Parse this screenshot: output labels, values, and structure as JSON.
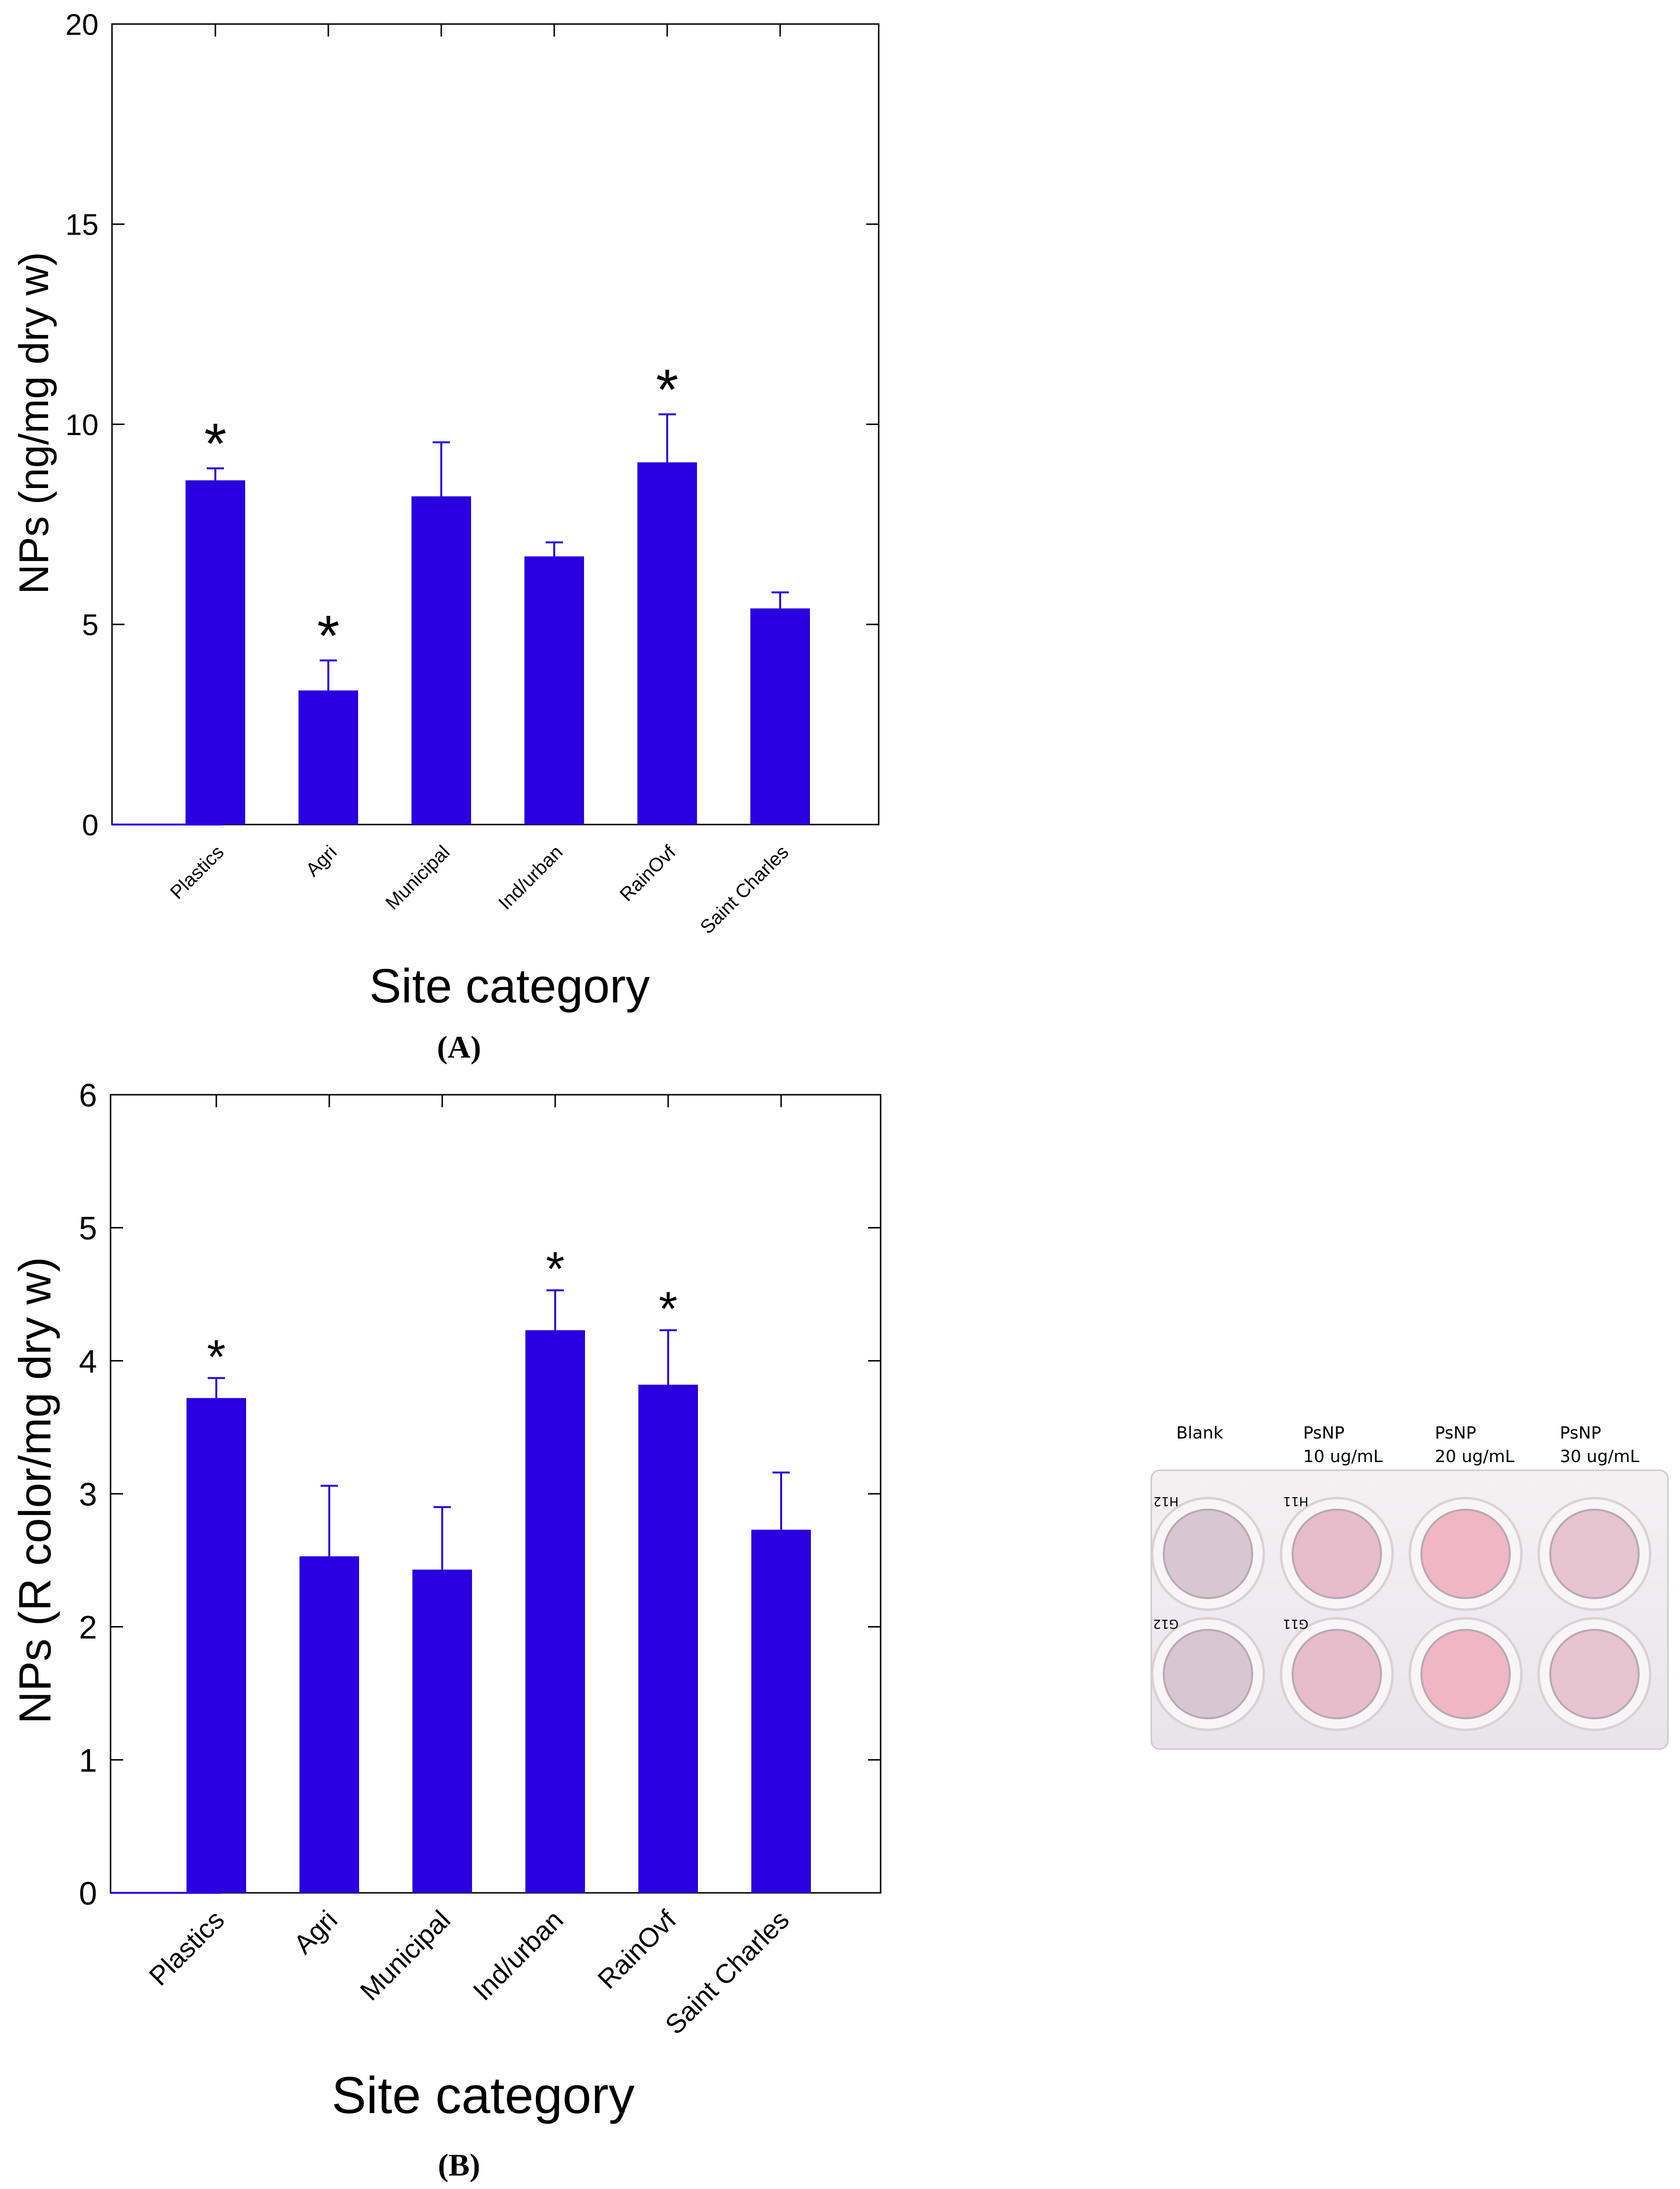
{
  "chart_data": [
    {
      "type": "bar",
      "panel": "(A)",
      "panel_letter": "A",
      "categories": [
        "Plastics",
        "Agri",
        "Municipal",
        "Ind/urban",
        "RainOvf",
        "Saint Charles"
      ],
      "values": [
        8.6,
        3.35,
        8.2,
        6.7,
        9.05,
        5.4
      ],
      "errors": [
        0.3,
        0.75,
        1.35,
        0.35,
        1.2,
        0.4
      ],
      "significant": [
        true,
        true,
        false,
        false,
        true,
        false
      ],
      "significance_marker": "*",
      "xlabel": "Site category",
      "ylabel": "NPs (ng/mg dry w)",
      "ylim": [
        0,
        20
      ],
      "yticks": [
        0,
        5,
        10,
        15,
        20
      ],
      "bar_color": "#2a00e0"
    },
    {
      "type": "bar",
      "panel": "(B)",
      "panel_letter": "B",
      "categories": [
        "Plastics",
        "Agri",
        "Municipal",
        "Ind/urban",
        "RainOvf",
        "Saint Charles"
      ],
      "values": [
        3.72,
        2.53,
        2.43,
        4.23,
        3.82,
        2.73
      ],
      "errors": [
        0.15,
        0.53,
        0.47,
        0.3,
        0.41,
        0.43
      ],
      "significant": [
        true,
        false,
        false,
        true,
        true,
        false
      ],
      "significance_marker": "*",
      "xlabel": "Site category",
      "ylabel": "NPs (R color/mg dry w)",
      "ylim": [
        0,
        6
      ],
      "yticks": [
        0,
        1,
        2,
        3,
        4,
        5,
        6
      ],
      "bar_color": "#2a00e0"
    }
  ],
  "plate_photo": {
    "column_labels": [
      {
        "line1": "Blank",
        "line2": ""
      },
      {
        "line1": "PsNP",
        "line2": "10 ug/mL"
      },
      {
        "line1": "PsNP",
        "line2": "20 ug/mL"
      },
      {
        "line1": "PsNP",
        "line2": "30 ug/mL"
      }
    ],
    "well_colors": [
      "#d8c6d3",
      "#e7bccb",
      "#efb7c4",
      "#e8c3d0"
    ],
    "well_ids_top": [
      "H12",
      "H11"
    ],
    "well_ids_bottom": [
      "G12",
      "G11"
    ]
  }
}
